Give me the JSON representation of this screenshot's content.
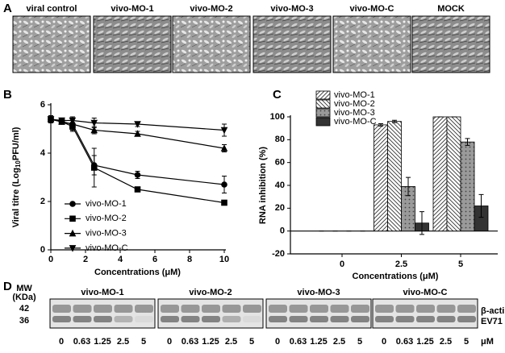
{
  "panels": {
    "a": "A",
    "b": "B",
    "c": "C",
    "d": "D"
  },
  "panel_a": {
    "labels": [
      "viral control",
      "vivo-MO-1",
      "vivo-MO-2",
      "vivo-MO-3",
      "vivo-MO-C",
      "MOCK"
    ]
  },
  "chart_data": [
    {
      "type": "line",
      "x_label": "Concentrations (μM)",
      "y_label": {
        "text": "Viral titre (Log",
        "sub": "10",
        "tail": "PFU/ml)"
      },
      "x": [
        0,
        0.63,
        1.25,
        2.5,
        5,
        10
      ],
      "xlim": [
        0,
        10
      ],
      "xticks": [
        0,
        2,
        4,
        6,
        8,
        10
      ],
      "ylim": [
        0,
        6
      ],
      "yticks": [
        0,
        2,
        4,
        6
      ],
      "legend": "lower left",
      "series": [
        {
          "name": "vivo-MO-1",
          "color": "#000000",
          "marker": "circle",
          "values": [
            5.4,
            5.3,
            5.2,
            3.5,
            3.1,
            2.7
          ],
          "errors": [
            0.15,
            0.1,
            0.3,
            0.4,
            0.15,
            0.35
          ]
        },
        {
          "name": "vivo-MO-2",
          "color": "#000000",
          "marker": "square",
          "values": [
            5.4,
            5.3,
            5.1,
            3.4,
            2.5,
            1.95
          ],
          "errors": [
            0.1,
            0.1,
            0.15,
            0.8,
            0.05,
            0.1
          ]
        },
        {
          "name": "vivo-MO-3",
          "color": "#000000",
          "marker": "triangle-up",
          "values": [
            5.4,
            5.3,
            5.2,
            4.95,
            4.8,
            4.2
          ],
          "errors": [
            0.1,
            0.1,
            0.2,
            0.15,
            0.1,
            0.15
          ]
        },
        {
          "name": "vivo-MO-C",
          "color": "#000000",
          "marker": "triangle-down",
          "values": [
            5.4,
            5.35,
            5.35,
            5.25,
            5.2,
            4.95
          ],
          "errors": [
            0.1,
            0.1,
            0.15,
            0.2,
            0.1,
            0.25
          ]
        }
      ]
    },
    {
      "type": "bar",
      "x_label": "Concentrations (μM)",
      "y_label": "RNA inhibition (%)",
      "categories": [
        "0",
        "2.5",
        "5"
      ],
      "ylim": [
        -20,
        100
      ],
      "yticks": [
        -20,
        0,
        20,
        40,
        60,
        80,
        100
      ],
      "legend": "upper left",
      "series": [
        {
          "name": "vivo-MO-1",
          "color": "#ffffff",
          "hatch": "right",
          "values": [
            0,
            93,
            100
          ],
          "errors": [
            0,
            1,
            0
          ]
        },
        {
          "name": "vivo-MO-2",
          "color": "#ffffff",
          "hatch": "left",
          "values": [
            0,
            96,
            100
          ],
          "errors": [
            0,
            1,
            0
          ]
        },
        {
          "name": "vivo-MO-3",
          "color": "#9a9a9a",
          "hatch": "dots",
          "values": [
            0,
            39,
            78
          ],
          "errors": [
            0,
            8,
            3
          ]
        },
        {
          "name": "vivo-MO-C",
          "color": "#333333",
          "hatch": "none",
          "values": [
            0,
            7,
            22
          ],
          "errors": [
            0,
            10,
            10
          ]
        }
      ]
    }
  ],
  "panel_d": {
    "mw_label": "MW",
    "mw_unit": "(KDa)",
    "mw_markers": [
      "42",
      "36"
    ],
    "groups": [
      "vivo-MO-1",
      "vivo-MO-2",
      "vivo-MO-3",
      "vivo-MO-C"
    ],
    "bands": [
      "β-actin",
      "EV71"
    ],
    "lanes": [
      "0",
      "0.63",
      "1.25",
      "2.5",
      "5"
    ],
    "unit": "μM"
  }
}
